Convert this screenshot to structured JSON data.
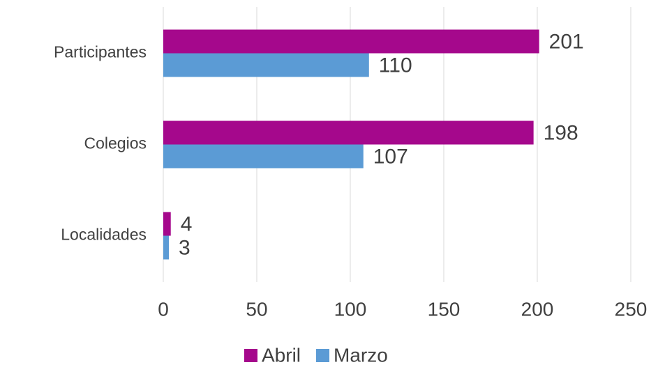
{
  "chart_data": {
    "type": "barh",
    "categories": [
      "Participantes",
      "Colegios",
      "Localidades"
    ],
    "series": [
      {
        "name": "Abril",
        "color": "#a5088c",
        "values": [
          201,
          198,
          4
        ]
      },
      {
        "name": "Marzo",
        "color": "#5b9bd5",
        "values": [
          110,
          107,
          3
        ]
      }
    ],
    "xlim": [
      0,
      250
    ],
    "xticks": [
      0,
      50,
      100,
      150,
      200,
      250
    ],
    "grid": true,
    "legend": "bottom"
  }
}
